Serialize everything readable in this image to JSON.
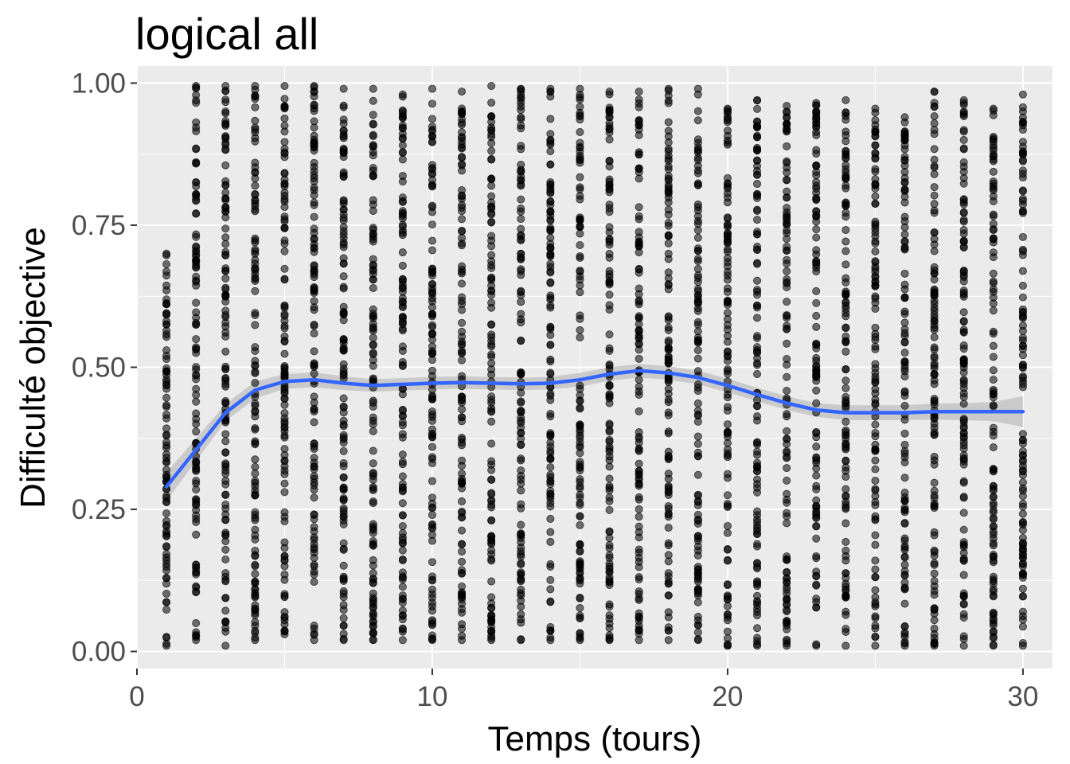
{
  "chart_data": {
    "type": "scatter",
    "title": "logical all",
    "xlabel": "Temps (tours)",
    "ylabel": "Difficulté objective",
    "xlim": [
      0,
      31
    ],
    "ylim": [
      -0.03,
      1.03
    ],
    "x_ticks": [
      0,
      10,
      20,
      30
    ],
    "x_tick_labels": [
      "0",
      "10",
      "20",
      "30"
    ],
    "y_ticks": [
      0,
      0.25,
      0.5,
      0.75,
      1.0
    ],
    "y_tick_labels": [
      "0.00",
      "0.25",
      "0.50",
      "0.75",
      "1.00"
    ],
    "grid": true,
    "panel_background": "#ebebeb",
    "grid_color": "#ffffff",
    "point_color": "#000000",
    "point_alpha": 0.55,
    "point_stroke_color": "#000000",
    "x_values": [
      1,
      2,
      3,
      4,
      5,
      6,
      7,
      8,
      9,
      10,
      11,
      12,
      13,
      14,
      15,
      16,
      17,
      18,
      19,
      20,
      21,
      22,
      23,
      24,
      25,
      26,
      27,
      28,
      29,
      30
    ],
    "points_per_x_approx": 110,
    "point_range_per_x": [
      [
        0.01,
        0.7
      ],
      [
        0.02,
        0.995
      ],
      [
        0.01,
        0.995
      ],
      [
        0.02,
        0.995
      ],
      [
        0.03,
        0.995
      ],
      [
        0.02,
        0.995
      ],
      [
        0.02,
        0.99
      ],
      [
        0.02,
        0.99
      ],
      [
        0.02,
        0.98
      ],
      [
        0.02,
        0.99
      ],
      [
        0.02,
        0.985
      ],
      [
        0.02,
        0.995
      ],
      [
        0.02,
        0.99
      ],
      [
        0.02,
        0.99
      ],
      [
        0.02,
        0.99
      ],
      [
        0.02,
        0.985
      ],
      [
        0.02,
        0.985
      ],
      [
        0.02,
        0.99
      ],
      [
        0.02,
        0.99
      ],
      [
        0.01,
        0.955
      ],
      [
        0.01,
        0.97
      ],
      [
        0.01,
        0.96
      ],
      [
        0.01,
        0.965
      ],
      [
        0.01,
        0.97
      ],
      [
        0.01,
        0.955
      ],
      [
        0.01,
        0.94
      ],
      [
        0.01,
        0.985
      ],
      [
        0.01,
        0.97
      ],
      [
        0.01,
        0.955
      ],
      [
        0.01,
        0.98
      ]
    ],
    "smooth": {
      "method": "loess",
      "color": "#3366ff",
      "ribbon_color": "#bfbfbf",
      "x": [
        1,
        2,
        3,
        4,
        5,
        6,
        7,
        8,
        9,
        10,
        11,
        12,
        13,
        14,
        15,
        16,
        17,
        18,
        19,
        20,
        21,
        22,
        23,
        24,
        25,
        26,
        27,
        28,
        29,
        30
      ],
      "y": [
        0.29,
        0.355,
        0.42,
        0.46,
        0.475,
        0.478,
        0.472,
        0.468,
        0.47,
        0.472,
        0.473,
        0.472,
        0.471,
        0.472,
        0.478,
        0.488,
        0.494,
        0.49,
        0.482,
        0.468,
        0.452,
        0.437,
        0.425,
        0.42,
        0.42,
        0.42,
        0.422,
        0.422,
        0.422,
        0.422
      ],
      "ymin": [
        0.265,
        0.335,
        0.405,
        0.445,
        0.462,
        0.465,
        0.46,
        0.457,
        0.459,
        0.461,
        0.462,
        0.461,
        0.46,
        0.461,
        0.466,
        0.476,
        0.482,
        0.478,
        0.47,
        0.456,
        0.44,
        0.425,
        0.413,
        0.407,
        0.407,
        0.407,
        0.408,
        0.407,
        0.405,
        0.395
      ],
      "ymax": [
        0.315,
        0.375,
        0.435,
        0.475,
        0.488,
        0.491,
        0.484,
        0.479,
        0.481,
        0.483,
        0.484,
        0.483,
        0.482,
        0.483,
        0.49,
        0.5,
        0.506,
        0.502,
        0.494,
        0.48,
        0.464,
        0.449,
        0.437,
        0.433,
        0.433,
        0.433,
        0.436,
        0.437,
        0.439,
        0.449
      ]
    }
  }
}
